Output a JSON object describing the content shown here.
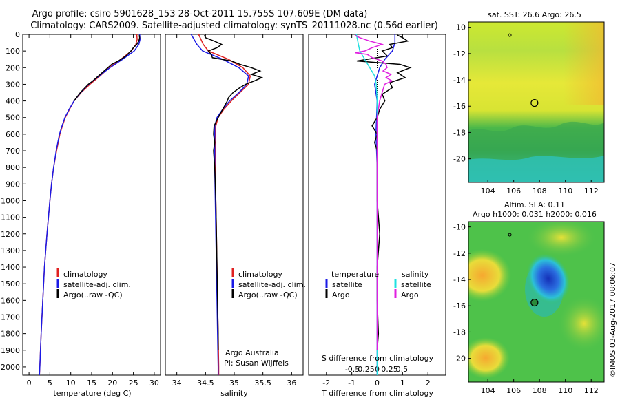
{
  "header": {
    "line1": "Argo profile: csiro 5901628_153 28-Oct-2011 15.755S 107.609E (DM data)",
    "line2": "Climatology: CARS2009. Satellite-adjusted climatology: synTS_20111028.nc (0.56d earlier)"
  },
  "colors": {
    "climatology": "#e02020",
    "satellite": "#1a1ae6",
    "argo": "#000000",
    "sal_sat": "#20e0e0",
    "sal_argo": "#e020e0"
  },
  "depth_axis": {
    "min": 0,
    "max": 2050,
    "ticks": [
      "0",
      "100",
      "200",
      "300",
      "400",
      "500",
      "600",
      "700",
      "800",
      "900",
      "1000",
      "1100",
      "1200",
      "1300",
      "1400",
      "1500",
      "1600",
      "1700",
      "1800",
      "1900",
      "2000"
    ]
  },
  "chart_data": [
    {
      "type": "line",
      "panel": "temperature",
      "xlabel": "temperature (deg C)",
      "ylabel": "depth",
      "xlim": [
        -1.5,
        31.5
      ],
      "xticks": [
        "0",
        "5",
        "10",
        "15",
        "20",
        "25",
        "30"
      ],
      "legend": [
        "climatology",
        "satellite-adj. clim.",
        "Argo(..raw -QC)"
      ],
      "series": [
        {
          "name": "climatology",
          "depth": [
            0,
            30,
            60,
            100,
            150,
            200,
            250,
            300,
            350,
            400,
            450,
            500,
            550,
            600,
            700,
            800,
            900,
            1000,
            1200,
            1400,
            1600,
            1800,
            2000,
            2050
          ],
          "values": [
            25.8,
            25.9,
            25.6,
            24.5,
            22.0,
            19.2,
            17.0,
            14.6,
            12.5,
            10.8,
            9.7,
            8.7,
            8.0,
            7.4,
            6.6,
            5.9,
            5.4,
            5.0,
            4.3,
            3.7,
            3.3,
            2.9,
            2.6,
            2.5
          ]
        },
        {
          "name": "satellite-adj. clim.",
          "depth": [
            0,
            30,
            60,
            100,
            150,
            200,
            250,
            300,
            350,
            400,
            450,
            500,
            550,
            600,
            700,
            800,
            900,
            1000,
            1200,
            1400,
            1600,
            1800,
            2000,
            2050
          ],
          "values": [
            26.5,
            26.6,
            26.3,
            25.2,
            22.4,
            19.4,
            16.8,
            14.3,
            12.4,
            10.8,
            9.6,
            8.6,
            7.9,
            7.3,
            6.5,
            5.9,
            5.4,
            5.0,
            4.3,
            3.7,
            3.3,
            2.9,
            2.6,
            2.5
          ]
        },
        {
          "name": "Argo(..raw -QC)",
          "depth": [
            5,
            20,
            40,
            60,
            80,
            100,
            130,
            160,
            180,
            200,
            220,
            250,
            280,
            300,
            350,
            400
          ],
          "values": [
            26.4,
            26.5,
            26.3,
            25.8,
            25.0,
            24.4,
            23.2,
            21.4,
            19.8,
            18.9,
            18.0,
            16.6,
            15.3,
            14.2,
            12.3,
            10.8
          ]
        }
      ]
    },
    {
      "type": "line",
      "panel": "salinity",
      "xlabel": "salinity",
      "xlim": [
        33.8,
        36.2
      ],
      "xticks": [
        "34",
        "34.5",
        "35",
        "35.5",
        "36"
      ],
      "legend": [
        "climatology",
        "satellite-adj. clim.",
        "Argo(..raw -QC)"
      ],
      "annotation": [
        "Argo Australia",
        "PI: Susan Wijffels"
      ],
      "series": [
        {
          "name": "climatology",
          "depth": [
            0,
            30,
            60,
            100,
            150,
            200,
            250,
            300,
            350,
            400,
            450,
            500,
            550,
            600,
            700,
            800,
            1000,
            1200,
            1400,
            1600,
            1800,
            2000,
            2050
          ],
          "values": [
            34.38,
            34.42,
            34.46,
            34.55,
            34.9,
            35.15,
            35.28,
            35.25,
            35.1,
            34.95,
            34.82,
            34.72,
            34.68,
            34.67,
            34.67,
            34.67,
            34.68,
            34.69,
            34.7,
            34.71,
            34.72,
            34.73,
            34.73
          ]
        },
        {
          "name": "satellite-adj. clim.",
          "depth": [
            0,
            30,
            60,
            100,
            150,
            200,
            250,
            300,
            350,
            400,
            450,
            500,
            550,
            600,
            700,
            800,
            1000,
            1200,
            1400,
            1600,
            1800,
            2000,
            2050
          ],
          "values": [
            34.25,
            34.3,
            34.35,
            34.45,
            34.8,
            35.08,
            35.25,
            35.22,
            35.08,
            34.92,
            34.8,
            34.7,
            34.66,
            34.66,
            34.66,
            34.66,
            34.67,
            34.68,
            34.69,
            34.7,
            34.71,
            34.72,
            34.72
          ]
        },
        {
          "name": "Argo(..raw -QC)",
          "depth": [
            5,
            20,
            40,
            60,
            80,
            100,
            120,
            140,
            160,
            180,
            200,
            220,
            240,
            260,
            280,
            300,
            320,
            350,
            380,
            400,
            450,
            500,
            550,
            600,
            650,
            700,
            800,
            900,
            1000,
            1200,
            1400,
            1600,
            1800,
            1900
          ],
          "values": [
            34.48,
            34.5,
            34.65,
            34.78,
            34.7,
            34.55,
            34.6,
            34.62,
            34.95,
            35.1,
            35.3,
            35.45,
            35.3,
            35.48,
            35.35,
            35.2,
            35.1,
            34.98,
            34.9,
            34.88,
            34.8,
            34.72,
            34.65,
            34.64,
            34.66,
            34.64,
            34.66,
            34.67,
            34.68,
            34.69,
            34.7,
            34.71,
            34.72,
            34.72
          ]
        }
      ]
    },
    {
      "type": "line",
      "panel": "difference",
      "xlabel": "T difference from climatology",
      "xlabel_top": "S difference from climatology",
      "xlim": [
        -2.7,
        2.7
      ],
      "xticks": [
        "-2",
        "-1",
        "0",
        "1",
        "2"
      ],
      "xticks_top": [
        "-0.5",
        "-0.25",
        "0",
        "0.25",
        "0.5"
      ],
      "legend_headers": [
        "temperature",
        "salinity"
      ],
      "legend": [
        "satellite",
        "Argo",
        "satellite",
        "Argo"
      ],
      "series": [
        {
          "name": "temperature satellite",
          "depth": [
            0,
            50,
            100,
            150,
            200,
            300,
            400,
            600,
            800,
            1200,
            1600,
            2050
          ],
          "values": [
            0.7,
            0.7,
            0.6,
            0.3,
            0.1,
            -0.1,
            0.0,
            -0.05,
            0.0,
            0.0,
            0.0,
            0.0
          ]
        },
        {
          "name": "temperature Argo",
          "depth": [
            5,
            20,
            40,
            60,
            80,
            100,
            130,
            160,
            180,
            200,
            230,
            260,
            290,
            320,
            360,
            400,
            450,
            500,
            550,
            600,
            650,
            700,
            800,
            1000,
            1200,
            1400,
            1600,
            1800,
            1900
          ],
          "values": [
            0.8,
            1.0,
            1.2,
            0.5,
            0.6,
            0.2,
            0.4,
            -0.8,
            0.9,
            1.3,
            0.8,
            1.1,
            0.5,
            0.6,
            0.2,
            0.3,
            0.1,
            0.0,
            -0.2,
            0.0,
            -0.1,
            0.0,
            0.0,
            0.0,
            0.1,
            0.0,
            0.0,
            0.05,
            0.0
          ]
        },
        {
          "name": "salinity satellite",
          "depth": [
            0,
            30,
            60,
            100,
            150,
            200,
            250,
            300,
            400,
            600,
            800,
            1200,
            1600,
            2050
          ],
          "values": [
            -0.42,
            -0.4,
            -0.38,
            -0.35,
            -0.25,
            -0.15,
            -0.05,
            -0.02,
            0.0,
            0.0,
            0.0,
            0.0,
            0.0,
            0.0
          ]
        },
        {
          "name": "salinity Argo",
          "depth": [
            5,
            20,
            40,
            60,
            80,
            100,
            110,
            120,
            140,
            160,
            180,
            200,
            220,
            240,
            260,
            280,
            300,
            350,
            400,
            500,
            600,
            700,
            800,
            1000,
            1300,
            1600,
            1900
          ],
          "values": [
            -0.45,
            -0.35,
            -0.15,
            0.1,
            -0.1,
            -0.25,
            -0.45,
            -0.2,
            -0.1,
            0.1,
            0.18,
            0.2,
            0.12,
            0.28,
            0.18,
            0.3,
            0.15,
            0.1,
            0.05,
            0.0,
            0.0,
            0.0,
            0.0,
            0.0,
            0.0,
            0.0,
            0.0
          ]
        }
      ]
    },
    {
      "type": "heatmap",
      "panel": "sst_map",
      "title": "sat. SST: 26.6 Argo: 26.5",
      "xticks": [
        "104",
        "106",
        "108",
        "110",
        "112"
      ],
      "yticks": [
        "-10",
        "-12",
        "-14",
        "-16",
        "-18",
        "-20"
      ],
      "xlim": [
        102.5,
        113
      ],
      "ylim": [
        -21.8,
        -9.6
      ],
      "marker_lon": 107.609,
      "marker_lat": -15.755,
      "prev_lon": 105.7,
      "prev_lat": -10.6
    },
    {
      "type": "heatmap",
      "panel": "sla_map",
      "title_lines": [
        "Altim. SLA: 0.11",
        "Argo h1000: 0.031 h2000: 0.016"
      ],
      "xticks": [
        "104",
        "106",
        "108",
        "110",
        "112"
      ],
      "yticks": [
        "-10",
        "-12",
        "-14",
        "-16",
        "-18",
        "-20"
      ],
      "xlim": [
        102.5,
        113
      ],
      "ylim": [
        -21.8,
        -9.6
      ],
      "marker_lon": 107.609,
      "marker_lat": -15.755,
      "prev_lon": 105.7,
      "prev_lat": -10.6
    }
  ],
  "footer": {
    "credit": "©IMOS 03-Aug-2017 08:06:07"
  }
}
